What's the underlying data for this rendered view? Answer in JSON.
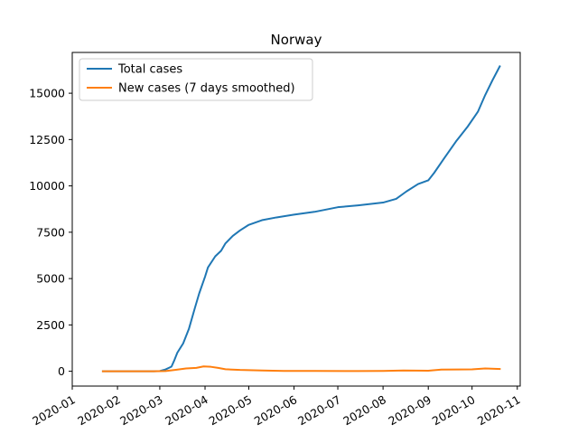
{
  "chart_data": {
    "type": "line",
    "title": "Norway",
    "xlabel": "",
    "ylabel": "",
    "x_tick_labels": [
      "2020-01",
      "2020-02",
      "2020-03",
      "2020-04",
      "2020-05",
      "2020-06",
      "2020-07",
      "2020-08",
      "2020-09",
      "2020-10",
      "2020-11"
    ],
    "y_ticks": [
      0,
      2500,
      5000,
      7500,
      10000,
      12500,
      15000
    ],
    "y_tick_labels": [
      "0",
      "2500",
      "5000",
      "7500",
      "10000",
      "12500",
      "15000"
    ],
    "xlim": [
      "2020-01-01",
      "2020-11-03"
    ],
    "ylim": [
      -800,
      17200
    ],
    "grid": false,
    "legend_position": "top-left",
    "series": [
      {
        "name": "Total cases",
        "color": "#1f77b4",
        "points": [
          [
            "2020-01-22",
            0
          ],
          [
            "2020-02-26",
            1
          ],
          [
            "2020-03-01",
            10
          ],
          [
            "2020-03-05",
            100
          ],
          [
            "2020-03-09",
            250
          ],
          [
            "2020-03-11",
            600
          ],
          [
            "2020-03-13",
            1000
          ],
          [
            "2020-03-17",
            1500
          ],
          [
            "2020-03-21",
            2300
          ],
          [
            "2020-03-25",
            3400
          ],
          [
            "2020-03-28",
            4200
          ],
          [
            "2020-04-01",
            5100
          ],
          [
            "2020-04-03",
            5600
          ],
          [
            "2020-04-08",
            6200
          ],
          [
            "2020-04-12",
            6500
          ],
          [
            "2020-04-15",
            6900
          ],
          [
            "2020-04-20",
            7300
          ],
          [
            "2020-04-25",
            7600
          ],
          [
            "2020-05-01",
            7900
          ],
          [
            "2020-05-10",
            8150
          ],
          [
            "2020-05-20",
            8300
          ],
          [
            "2020-06-01",
            8450
          ],
          [
            "2020-06-15",
            8600
          ],
          [
            "2020-07-01",
            8850
          ],
          [
            "2020-07-15",
            8950
          ],
          [
            "2020-08-01",
            9100
          ],
          [
            "2020-08-10",
            9300
          ],
          [
            "2020-08-17",
            9700
          ],
          [
            "2020-08-25",
            10100
          ],
          [
            "2020-09-01",
            10300
          ],
          [
            "2020-09-05",
            10700
          ],
          [
            "2020-09-12",
            11500
          ],
          [
            "2020-09-20",
            12400
          ],
          [
            "2020-09-28",
            13200
          ],
          [
            "2020-10-05",
            14000
          ],
          [
            "2020-10-10",
            14900
          ],
          [
            "2020-10-15",
            15700
          ],
          [
            "2020-10-20",
            16450
          ]
        ]
      },
      {
        "name": "New cases (7 days smoothed)",
        "color": "#ff7f0e",
        "points": [
          [
            "2020-01-22",
            0
          ],
          [
            "2020-02-26",
            0
          ],
          [
            "2020-03-05",
            10
          ],
          [
            "2020-03-12",
            80
          ],
          [
            "2020-03-19",
            150
          ],
          [
            "2020-03-26",
            180
          ],
          [
            "2020-03-31",
            260
          ],
          [
            "2020-04-05",
            240
          ],
          [
            "2020-04-10",
            180
          ],
          [
            "2020-04-15",
            110
          ],
          [
            "2020-04-25",
            70
          ],
          [
            "2020-05-10",
            40
          ],
          [
            "2020-05-25",
            20
          ],
          [
            "2020-06-15",
            15
          ],
          [
            "2020-07-15",
            10
          ],
          [
            "2020-08-01",
            15
          ],
          [
            "2020-08-15",
            40
          ],
          [
            "2020-09-01",
            30
          ],
          [
            "2020-09-10",
            90
          ],
          [
            "2020-10-01",
            100
          ],
          [
            "2020-10-10",
            150
          ],
          [
            "2020-10-20",
            120
          ]
        ]
      }
    ]
  }
}
